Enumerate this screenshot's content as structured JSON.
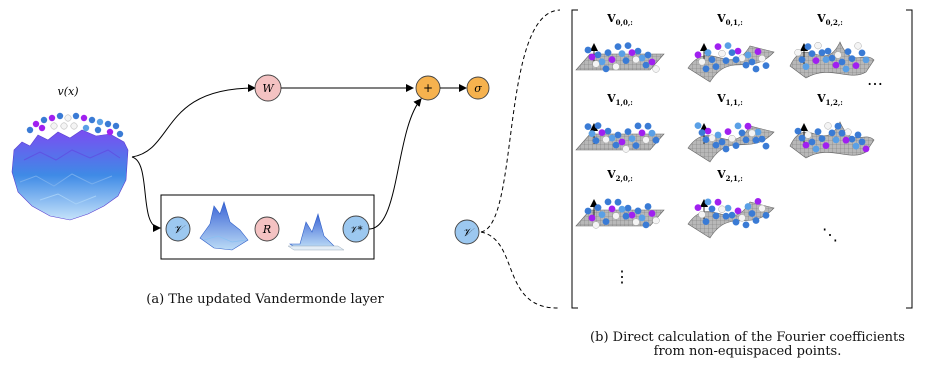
{
  "left_panel": {
    "input_label": "v(x)",
    "nodes": {
      "W": "W",
      "plus": "+",
      "sigma": "σ",
      "V": "𝒱",
      "R": "R",
      "V_adjoint": "𝒱*"
    },
    "caption": "(a) The updated Vandermonde layer"
  },
  "right_panel": {
    "node_V": "𝒱",
    "cells": [
      {
        "label": "V",
        "sub": "0,0,:"
      },
      {
        "label": "V",
        "sub": "0,1,:"
      },
      {
        "label": "V",
        "sub": "0,2,:"
      },
      {
        "label": "V",
        "sub": "1,0,:"
      },
      {
        "label": "V",
        "sub": "1,1,:"
      },
      {
        "label": "V",
        "sub": "1,2,:"
      },
      {
        "label": "V",
        "sub": "2,0,:"
      },
      {
        "label": "V",
        "sub": "2,1,:"
      }
    ],
    "ellipsis_h": "…",
    "ellipsis_v": "⋮",
    "ellipsis_d": "⋱",
    "caption_line1": "(b) Direct calculation of the Fourier coefficients",
    "caption_line2": "from non-equispaced points."
  },
  "colors": {
    "W_fill": "#f4c2c2",
    "R_fill": "#f4c2c2",
    "plus_fill": "#f6b24e",
    "sigma_fill": "#f6b24e",
    "V_fill": "#9cc8f0",
    "pink_stroke": "#444444",
    "blue_dot": "#3a7bd5",
    "purple_dot": "#a020f0",
    "white_dot": "#f4f4f4",
    "surface_grey": "#9a9a9a"
  }
}
